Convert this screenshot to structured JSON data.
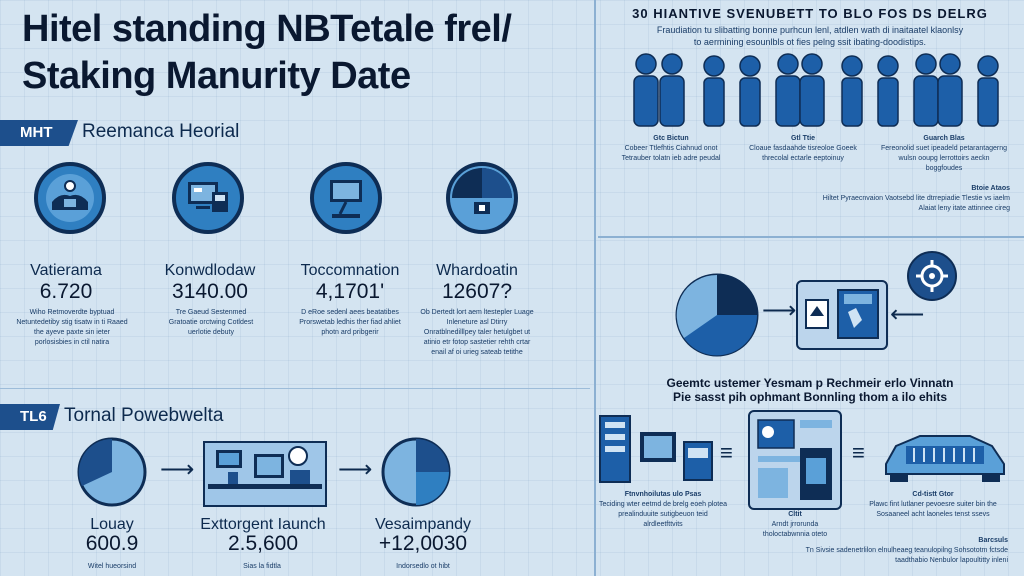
{
  "title": {
    "line1": "Hitel standing NBTetale frel/",
    "line2": "Staking Manurity Date"
  },
  "section1": {
    "tag": "MHT",
    "title": "Reemanca Heorial",
    "stats": [
      {
        "icon": "network-hand-icon",
        "label": "Vatierama",
        "value": "6.720",
        "text": "Wiho Retmoverdte byptuad Netuntedetiby stig tisatw in ti Raaed the ayeve paxte sin ieter porlosisbies in ctil natira"
      },
      {
        "icon": "monitor-screens-icon",
        "label": "Konwdlodaw",
        "value": "3140.00",
        "text": "Tre Gaeud Sestenmed Gratoatie orctwing Cotldest uerlotie debuty"
      },
      {
        "icon": "desk-lamp-icon",
        "label": "Toccomnation",
        "value": "4,1701'",
        "text": "D eRoe sedenl aees beatatibes Prorswetab ledhis ther fiad ahliet photn ard pribgerir"
      },
      {
        "icon": "pie-portfolio-icon",
        "label": "Whardoatin",
        "value": "12607?",
        "text": "Ob Dertedt lort aem ltestepler Luage Inleneture asl Dtirry Onratblnedilllpey taler hetulgbet ut atinio etr fotop sastetier rehth crtar enail af oi urieg sateab tetithe"
      }
    ]
  },
  "section2": {
    "tag": "TL6",
    "title": "Tornal Powebwelta",
    "stats": [
      {
        "label": "Louay",
        "value": "600.9",
        "text": "Witel hueorsind"
      },
      {
        "label": "Exttorgent Iaunch",
        "value": "2.5,600",
        "text": "Sias la fidtla"
      },
      {
        "label": "Vesaimpandy",
        "value": "+12,0030",
        "text": "Indorsedlo ot hibt"
      }
    ]
  },
  "right_top": {
    "header": "30 HIANTIVE SVENUBETT TO BLO FOS DS DELRG",
    "sub1": "Fraudiation tu slibatting bonne purhcun lenl, atdlen wath di inaitaatel klaonlsy",
    "sub2": "to aermining esounlbls ot fies pelng ssit ibating-doodistips.",
    "captions": [
      {
        "title": "Gtc Bictun",
        "text": "Cobeer Ttlefhtis Ciahnud onot Tetrauber tolatn ieb adre peudal"
      },
      {
        "title": "Gtl Ttie",
        "text": "Cloaue fasdaahde tisreoloe Goeek threcolal ectarle eeptoinuy"
      },
      {
        "title": "Guarch Blas",
        "text": "Fereonolid suet ipeadeld petarantagerng wulsn ooupg lerrottoirs aeckn boggfoudes"
      }
    ],
    "caption4": {
      "title": "Btoie Ataos",
      "text": "Hiltet Pyraecnvaion Vaotsebd lite dtrrepiadie Tlestie vs iaelm Alaiat leny itate attinnee cireg"
    }
  },
  "right_bottom": {
    "heading1": "Geemtc ustemer Yesmam p Rechmeir erlo Vinnatn",
    "heading2": "Pie sasst pih ophmant Bonnling thom a ilo ehits",
    "captions": [
      {
        "title": "Ftnvnhoilutas ulo Psas",
        "text": "Teciding wter eetmd de brelg eoeh plotea prealinduuite sutigbeuon teid alrdleetfttvits"
      },
      {
        "title": "Cltit",
        "text": "Arndt jrrorunda tholoctabwnnia oteto"
      },
      {
        "title": "Cd-tistt Gtor",
        "text": "Plawc fint lutlaner pevoesre suiter bin the Sosaaneel acht laoneles tenst ssevs"
      }
    ],
    "footer_title": "Barcsuls",
    "footer_text": "Tn Sivsie sadenetrlilon elnulheaeg teanulopilng Sohsototm fctsde taadthabio Nenbulor lapoultitty inleni"
  },
  "colors": {
    "primary": "#1d4f8c",
    "accent": "#2f7fc1",
    "light": "#7db4e0",
    "dark": "#0e2d55",
    "background": "#d4e4f1"
  }
}
